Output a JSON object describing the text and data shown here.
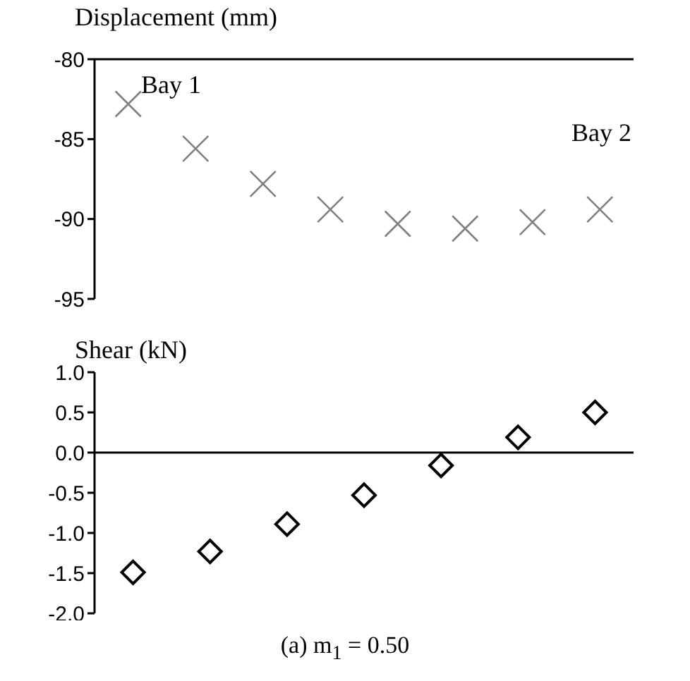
{
  "chart_data": [
    {
      "type": "scatter",
      "ylabel": "Displacement (mm)",
      "categories": [
        null,
        null,
        null,
        null,
        null,
        null,
        null,
        null
      ],
      "series": [
        {
          "color": "#808080",
          "marker": "cross",
          "values": [
            -82.8,
            -85.6,
            -87.8,
            -89.4,
            -90.3,
            -90.6,
            -90.2,
            -89.4
          ]
        }
      ],
      "ylim": [
        -95,
        -80
      ],
      "yticks": [
        -95,
        -90,
        -85,
        -80
      ],
      "annotations": [
        "Bay 1",
        "Bay 2"
      ]
    },
    {
      "type": "scatter",
      "ylabel": "Shear (kN)",
      "categories": [
        null,
        null,
        null,
        null,
        null,
        null,
        null
      ],
      "series": [
        {
          "color": "#000000",
          "marker": "diamond",
          "values": [
            -1.49,
            -1.23,
            -0.89,
            -0.53,
            -0.16,
            0.19,
            0.5
          ]
        }
      ],
      "ylim": [
        -2,
        1
      ],
      "yticks": [
        {
          "value": -2,
          "label": "-2.0"
        },
        {
          "value": -1.5,
          "label": "-1.5"
        },
        {
          "value": -1,
          "label": "-1.0"
        },
        {
          "value": -0.5,
          "label": "-0.5"
        },
        {
          "value": 0,
          "label": "0.0"
        },
        {
          "value": 0.5,
          "label": "0.5"
        },
        {
          "value": 1,
          "label": "1.0"
        }
      ],
      "annotations": [
        "(a) m$_{1}$ = 0.50"
      ]
    }
  ]
}
